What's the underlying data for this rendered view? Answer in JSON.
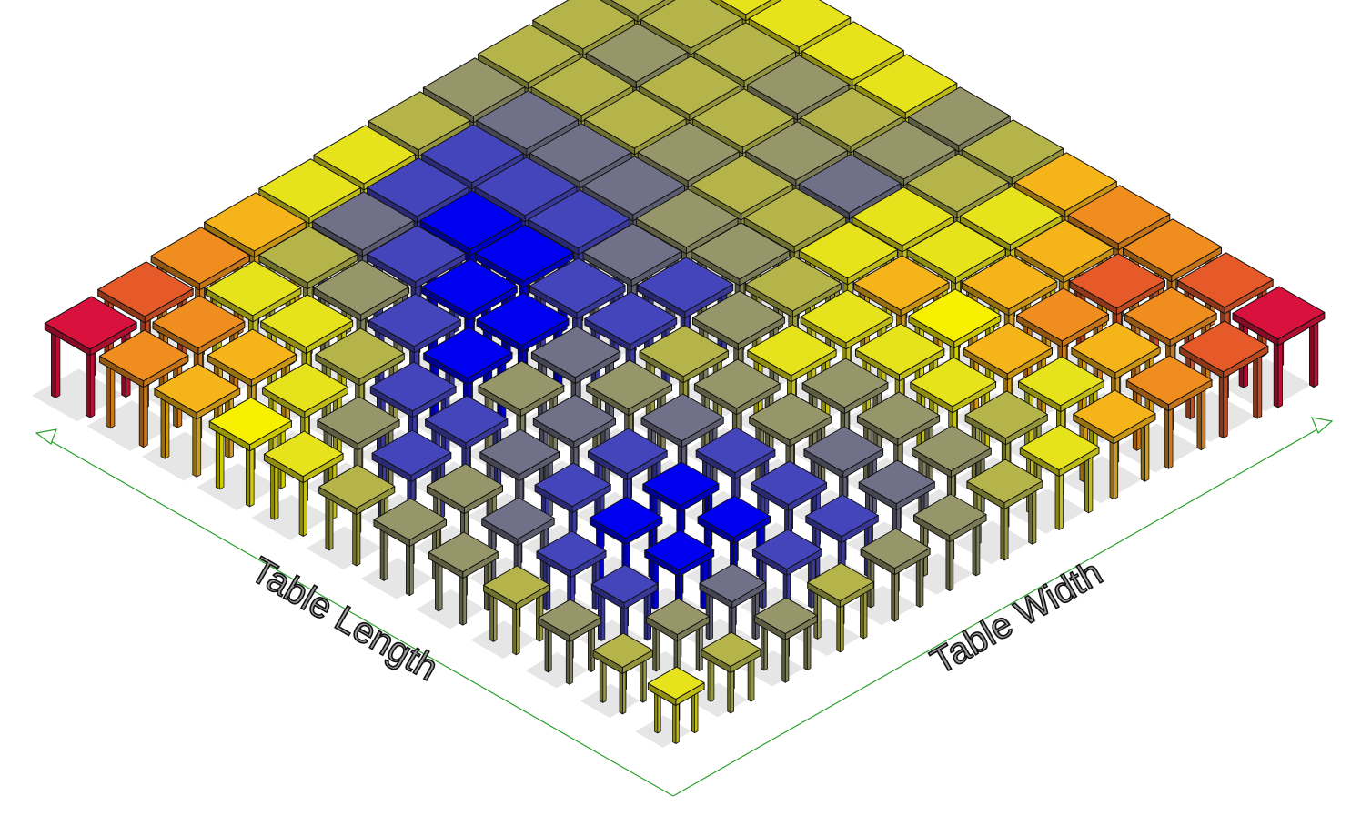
{
  "axes": {
    "length_label": "Table Length",
    "width_label": "Table Width",
    "axis_color": "#2ca02c",
    "label_fill": "#9a9a9a",
    "label_stroke": "#111111"
  },
  "palette": {
    "red": "#d8123c",
    "orange_red": "#e55a28",
    "orange": "#ef8e1f",
    "amber": "#f5b51a",
    "yellow": "#e6e21c",
    "bright_yellow": "#f7f100",
    "olive": "#b4b44b",
    "khaki": "#96966a",
    "slate": "#707088",
    "indigo": "#4444bb",
    "blue": "#0000f0"
  },
  "grid": {
    "rows": 12,
    "cols": 12,
    "colors": [
      [
        "yellow",
        "olive",
        "khaki",
        "olive",
        "khaki",
        "khaki",
        "olive",
        "yellow",
        "amber",
        "orange",
        "orange_red",
        "red"
      ],
      [
        "olive",
        "khaki",
        "slate",
        "indigo",
        "indigo",
        "slate",
        "khaki",
        "olive",
        "yellow",
        "amber",
        "orange",
        "orange_red"
      ],
      [
        "khaki",
        "indigo",
        "blue",
        "blue",
        "indigo",
        "slate",
        "khaki",
        "yellow",
        "amber",
        "orange",
        "orange_red",
        "orange"
      ],
      [
        "olive",
        "indigo",
        "blue",
        "blue",
        "indigo",
        "khaki",
        "khaki",
        "yellow",
        "bright_yellow",
        "amber",
        "amber",
        "orange"
      ],
      [
        "khaki",
        "slate",
        "indigo",
        "indigo",
        "slate",
        "khaki",
        "yellow",
        "yellow",
        "amber",
        "yellow",
        "yellow",
        "amber"
      ],
      [
        "khaki",
        "khaki",
        "slate",
        "slate",
        "khaki",
        "olive",
        "khaki",
        "olive",
        "yellow",
        "yellow",
        "olive",
        "olive"
      ],
      [
        "olive",
        "indigo",
        "indigo",
        "khaki",
        "slate",
        "indigo",
        "indigo",
        "khaki",
        "olive",
        "slate",
        "khaki",
        "khaki"
      ],
      [
        "yellow",
        "khaki",
        "indigo",
        "blue",
        "blue",
        "indigo",
        "slate",
        "khaki",
        "olive",
        "khaki",
        "olive",
        "yellow"
      ],
      [
        "bright_yellow",
        "yellow",
        "olive",
        "indigo",
        "blue",
        "blue",
        "indigo",
        "slate",
        "khaki",
        "olive",
        "khaki",
        "yellow"
      ],
      [
        "amber",
        "amber",
        "yellow",
        "khaki",
        "indigo",
        "blue",
        "indigo",
        "slate",
        "olive",
        "olive",
        "olive",
        "yellow"
      ],
      [
        "orange",
        "orange",
        "yellow",
        "olive",
        "slate",
        "indigo",
        "indigo",
        "slate",
        "olive",
        "khaki",
        "olive",
        "yellow"
      ],
      [
        "red",
        "orange_red",
        "orange",
        "amber",
        "yellow",
        "yellow",
        "olive",
        "khaki",
        "olive",
        "olive",
        "olive",
        "yellow"
      ]
    ]
  }
}
